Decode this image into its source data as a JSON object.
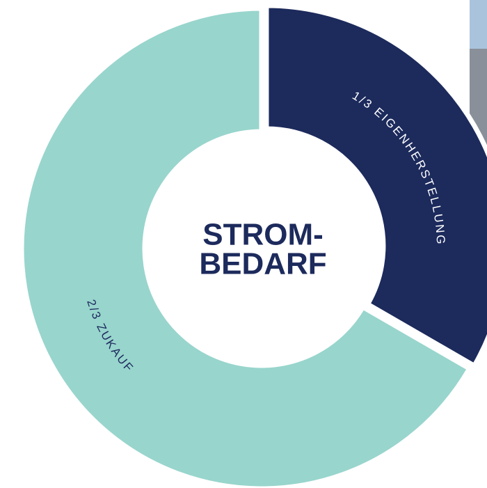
{
  "chart_data": {
    "type": "donut",
    "categories": [
      "1/3 EIGENHERSTELLUNG",
      "2/3 ZUKAUF"
    ],
    "values": [
      0.3333,
      0.6667
    ],
    "colors": [
      "#1c2a5c",
      "#98d5cd"
    ],
    "label_colors": [
      "#ffffff",
      "#1c2a5c"
    ],
    "center_text": [
      "STROM-",
      "BEDARF"
    ]
  }
}
